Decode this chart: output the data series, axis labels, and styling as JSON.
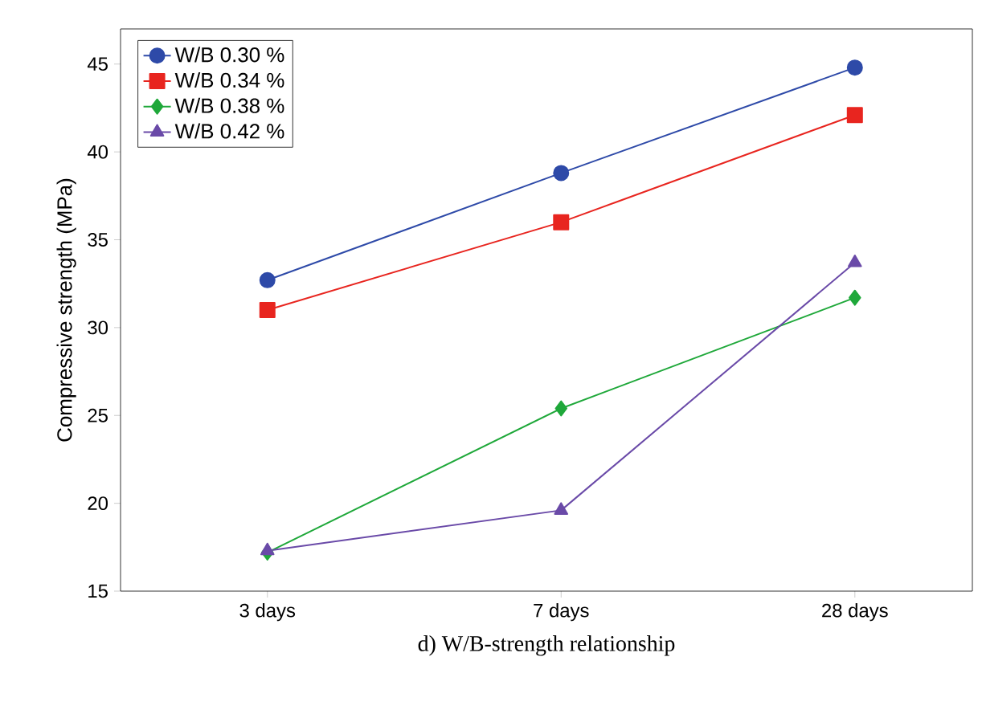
{
  "chart_data": {
    "type": "line",
    "title": "d) W/B-strength relationship",
    "ylabel": "Compressive strength (MPa)",
    "categories": [
      "3 days",
      "7 days",
      "28 days"
    ],
    "series": [
      {
        "name": "W/B 0.30 %",
        "color": "#2e4aa8",
        "marker": "circle",
        "values": [
          32.7,
          38.8,
          44.8
        ]
      },
      {
        "name": "W/B 0.34 %",
        "color": "#e8251f",
        "marker": "square",
        "values": [
          31.0,
          36.0,
          42.1
        ]
      },
      {
        "name": "W/B 0.38 %",
        "color": "#1fa83a",
        "marker": "diamond",
        "values": [
          17.2,
          25.4,
          31.7
        ]
      },
      {
        "name": "W/B 0.42 %",
        "color": "#6a4aa8",
        "marker": "triangle",
        "values": [
          17.3,
          19.6,
          33.7
        ]
      }
    ],
    "ylim": [
      15,
      47
    ],
    "yticks": [
      15,
      20,
      25,
      30,
      35,
      40,
      45
    ],
    "legend": "top left",
    "grid": false,
    "line_style": "solid"
  }
}
